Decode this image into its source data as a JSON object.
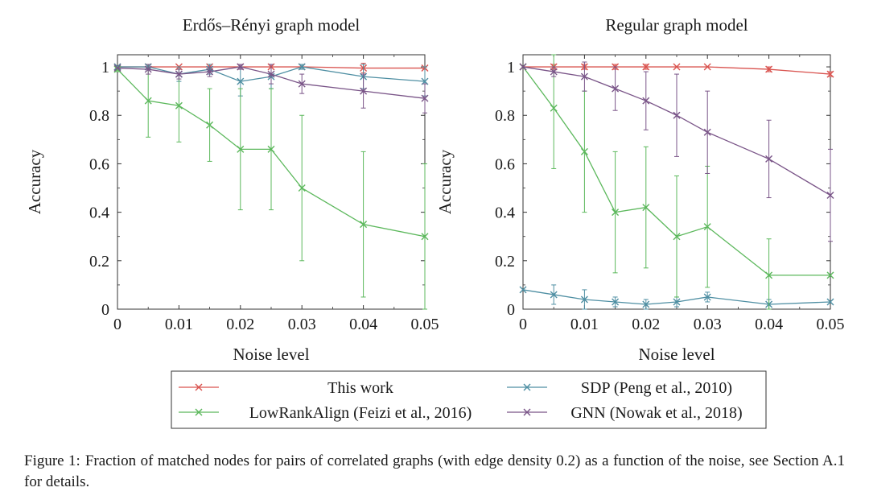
{
  "chart_data": [
    {
      "type": "line",
      "title": "Erdős–Rényi graph model",
      "xlabel": "Noise level",
      "ylabel": "Accuracy",
      "xlim": [
        0,
        0.05
      ],
      "ylim": [
        0,
        1.05
      ],
      "xticks": [
        0,
        0.01,
        0.02,
        0.03,
        0.04,
        0.05
      ],
      "xtick_labels": [
        "0",
        "0.01",
        "0.02",
        "0.03",
        "0.04",
        "0.05"
      ],
      "yticks": [
        0,
        0.2,
        0.4,
        0.6,
        0.8,
        1
      ],
      "ytick_labels": [
        "0",
        "0.2",
        "0.4",
        "0.6",
        "0.8",
        "1"
      ],
      "x": [
        0,
        0.005,
        0.01,
        0.015,
        0.02,
        0.025,
        0.03,
        0.04,
        0.05
      ],
      "series": [
        {
          "name": "This work",
          "key": "this_work",
          "values": [
            1,
            1,
            1,
            1,
            1,
            1,
            1,
            0.995,
            0.995
          ],
          "err": [
            0,
            0,
            0,
            0.01,
            0,
            0,
            0,
            0.02,
            0.005
          ]
        },
        {
          "name": "SDP (Peng et al., 2010)",
          "key": "sdp",
          "values": [
            1,
            1,
            0.97,
            0.99,
            0.94,
            0.96,
            1,
            0.96,
            0.94
          ],
          "err": [
            0,
            0.01,
            0.03,
            0.02,
            0.06,
            0.05,
            0.01,
            0.05,
            0.06
          ]
        },
        {
          "name": "LowRankAlign (Feizi et al., 2016)",
          "key": "lowrank",
          "values": [
            0.99,
            0.86,
            0.84,
            0.76,
            0.66,
            0.66,
            0.5,
            0.35,
            0.3
          ],
          "err": [
            0.01,
            0.15,
            0.15,
            0.15,
            0.25,
            0.25,
            0.3,
            0.3,
            0.3
          ]
        },
        {
          "name": "GNN (Nowak et al., 2018)",
          "key": "gnn",
          "values": [
            0.995,
            0.99,
            0.97,
            0.98,
            1,
            0.97,
            0.93,
            0.9,
            0.87
          ],
          "err": [
            0,
            0.02,
            0.02,
            0.02,
            0.01,
            0.04,
            0.04,
            0.07,
            0.06
          ]
        }
      ]
    },
    {
      "type": "line",
      "title": "Regular graph model",
      "xlabel": "Noise level",
      "ylabel": "Accuracy",
      "xlim": [
        0,
        0.05
      ],
      "ylim": [
        0,
        1.05
      ],
      "xticks": [
        0,
        0.01,
        0.02,
        0.03,
        0.04,
        0.05
      ],
      "xtick_labels": [
        "0",
        "0.01",
        "0.02",
        "0.03",
        "0.04",
        "0.05"
      ],
      "yticks": [
        0,
        0.2,
        0.4,
        0.6,
        0.8,
        1
      ],
      "ytick_labels": [
        "0",
        "0.2",
        "0.4",
        "0.6",
        "0.8",
        "1"
      ],
      "x": [
        0,
        0.005,
        0.01,
        0.015,
        0.02,
        0.025,
        0.03,
        0.04,
        0.05
      ],
      "series": [
        {
          "name": "This work",
          "key": "this_work",
          "values": [
            1,
            1,
            1,
            1,
            1,
            1,
            1,
            0.99,
            0.97
          ],
          "err": [
            0,
            0.01,
            0.01,
            0.01,
            0.01,
            0,
            0,
            0.01,
            0.01
          ]
        },
        {
          "name": "SDP (Peng et al., 2010)",
          "key": "sdp",
          "values": [
            0.08,
            0.06,
            0.04,
            0.03,
            0.02,
            0.03,
            0.05,
            0.02,
            0.03
          ],
          "err": [
            0,
            0.04,
            0.04,
            0.02,
            0.02,
            0.02,
            0.02,
            0.02,
            0
          ]
        },
        {
          "name": "LowRankAlign (Feizi et al., 2016)",
          "key": "lowrank",
          "values": [
            1,
            0.83,
            0.65,
            0.4,
            0.42,
            0.3,
            0.34,
            0.14,
            0.14
          ],
          "err": [
            0,
            0.25,
            0.25,
            0.25,
            0.25,
            0.25,
            0.25,
            0.15,
            0
          ]
        },
        {
          "name": "GNN (Nowak et al., 2018)",
          "key": "gnn",
          "values": [
            1,
            0.98,
            0.96,
            0.91,
            0.86,
            0.8,
            0.73,
            0.62,
            0.47
          ],
          "err": [
            0,
            0.02,
            0.06,
            0.09,
            0.12,
            0.17,
            0.17,
            0.16,
            0.19
          ]
        }
      ]
    }
  ],
  "legend": {
    "entries": [
      {
        "key": "this_work",
        "label": "This work"
      },
      {
        "key": "sdp",
        "label": "SDP (Peng et al., 2010)"
      },
      {
        "key": "lowrank",
        "label": "LowRankAlign (Feizi et al., 2016)"
      },
      {
        "key": "gnn",
        "label": "GNN (Nowak et al., 2018)"
      }
    ]
  },
  "colors": {
    "this_work": "#d9534f",
    "sdp": "#4f8fa3",
    "lowrank": "#5cb85c",
    "gnn": "#7a5588",
    "axis": "#333333"
  },
  "caption": {
    "label": "Figure 1:",
    "text": "Fraction of matched nodes for pairs of correlated graphs (with edge density 0.2) as a function of the noise, see Section A.1 for details."
  }
}
